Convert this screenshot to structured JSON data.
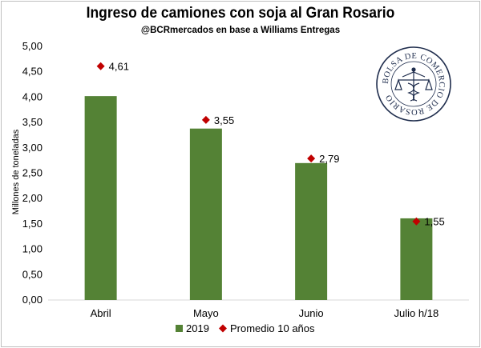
{
  "chart_data": {
    "type": "bar",
    "title": "Ingreso de camiones con soja al Gran Rosario",
    "subtitle": "@BCRmercados en base a Williams Entregas",
    "ylabel": "Millones de toneladas",
    "xlabel": "",
    "ylim": [
      0,
      5
    ],
    "yticks": [
      "0,00",
      "0,50",
      "1,00",
      "1,50",
      "2,00",
      "2,50",
      "3,00",
      "3,50",
      "4,00",
      "4,50",
      "5,00"
    ],
    "categories": [
      "Abril",
      "Mayo",
      "Junio",
      "Julio h/18"
    ],
    "series": [
      {
        "name": "2019",
        "kind": "bar",
        "values": [
          4.02,
          3.38,
          2.7,
          1.61
        ],
        "color": "#548235"
      },
      {
        "name": "Promedio 10 años",
        "kind": "marker",
        "values": [
          4.61,
          3.55,
          2.79,
          1.55
        ],
        "labels": [
          "4,61",
          "3,55",
          "2,79",
          "1,55"
        ],
        "color": "#c00000"
      }
    ],
    "grid": false,
    "legend": "bottom-center"
  },
  "logo": {
    "text": "BOLSA DE COMERCIO DE ROSARIO",
    "icon": "caduceus-scales-icon",
    "color": "#1f2d4d"
  }
}
